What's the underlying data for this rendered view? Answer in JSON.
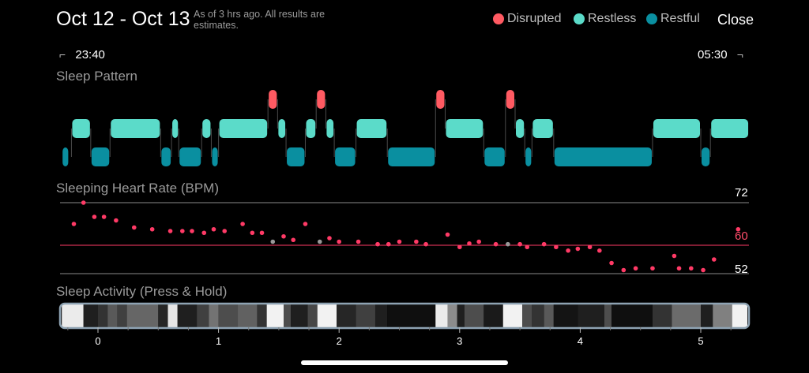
{
  "header": {
    "title": "Oct 12 - Oct 13",
    "note": "As of 3 hrs ago. All results are estimates.",
    "close_label": "Close"
  },
  "legend": [
    {
      "label": "Disrupted",
      "color": "#ff5a62"
    },
    {
      "label": "Restless",
      "color": "#5bdbc9"
    },
    {
      "label": "Restful",
      "color": "#0a8fa0"
    }
  ],
  "times": {
    "start": "23:40",
    "end": "05:30"
  },
  "sections": {
    "sleep_pattern": "Sleep Pattern",
    "heart_rate": "Sleeping Heart Rate (BPM)",
    "activity": "Sleep Activity (Press & Hold)"
  },
  "chart_data": [
    {
      "type": "timeline",
      "title": "Sleep Pattern",
      "x_unit": "hours",
      "xlim": [
        -0.32,
        5.4
      ],
      "stages": [
        "Disrupted",
        "Restless",
        "Restful"
      ],
      "segments": [
        {
          "stage": "Restful",
          "start": -0.3,
          "end": -0.24
        },
        {
          "stage": "Restless",
          "start": -0.22,
          "end": -0.06
        },
        {
          "stage": "Restful",
          "start": -0.06,
          "end": 0.1
        },
        {
          "stage": "Restless",
          "start": 0.1,
          "end": 0.52
        },
        {
          "stage": "Restful",
          "start": 0.52,
          "end": 0.61
        },
        {
          "stage": "Restless",
          "start": 0.61,
          "end": 0.67
        },
        {
          "stage": "Restful",
          "start": 0.67,
          "end": 0.86
        },
        {
          "stage": "Restless",
          "start": 0.86,
          "end": 0.94
        },
        {
          "stage": "Restful",
          "start": 0.94,
          "end": 1.0
        },
        {
          "stage": "Restless",
          "start": 1.0,
          "end": 1.41
        },
        {
          "stage": "Disrupted",
          "start": 1.41,
          "end": 1.49
        },
        {
          "stage": "Restless",
          "start": 1.49,
          "end": 1.56
        },
        {
          "stage": "Restful",
          "start": 1.56,
          "end": 1.72
        },
        {
          "stage": "Restless",
          "start": 1.72,
          "end": 1.81
        },
        {
          "stage": "Disrupted",
          "start": 1.81,
          "end": 1.89
        },
        {
          "stage": "Restless",
          "start": 1.89,
          "end": 1.96
        },
        {
          "stage": "Restful",
          "start": 1.96,
          "end": 2.14
        },
        {
          "stage": "Restless",
          "start": 2.14,
          "end": 2.4
        },
        {
          "stage": "Restful",
          "start": 2.4,
          "end": 2.8
        },
        {
          "stage": "Disrupted",
          "start": 2.8,
          "end": 2.88
        },
        {
          "stage": "Restless",
          "start": 2.88,
          "end": 3.2
        },
        {
          "stage": "Restful",
          "start": 3.2,
          "end": 3.38
        },
        {
          "stage": "Disrupted",
          "start": 3.38,
          "end": 3.46
        },
        {
          "stage": "Restless",
          "start": 3.46,
          "end": 3.54
        },
        {
          "stage": "Restful",
          "start": 3.54,
          "end": 3.6
        },
        {
          "stage": "Restless",
          "start": 3.6,
          "end": 3.78
        },
        {
          "stage": "Restful",
          "start": 3.78,
          "end": 4.6
        },
        {
          "stage": "Restless",
          "start": 4.6,
          "end": 5.0
        },
        {
          "stage": "Restful",
          "start": 5.0,
          "end": 5.08
        },
        {
          "stage": "Restless",
          "start": 5.08,
          "end": 5.4
        }
      ]
    },
    {
      "type": "scatter",
      "title": "Sleeping Heart Rate (BPM)",
      "x_unit": "hours",
      "xlim": [
        -0.32,
        5.4
      ],
      "ylim": [
        52,
        72
      ],
      "reference_lines": [
        72,
        60,
        52
      ],
      "highlight_line": 60,
      "points": [
        {
          "x": -0.2,
          "y": 66
        },
        {
          "x": -0.12,
          "y": 72
        },
        {
          "x": -0.03,
          "y": 68
        },
        {
          "x": 0.05,
          "y": 68
        },
        {
          "x": 0.15,
          "y": 67
        },
        {
          "x": 0.3,
          "y": 65
        },
        {
          "x": 0.45,
          "y": 64.5
        },
        {
          "x": 0.6,
          "y": 64
        },
        {
          "x": 0.7,
          "y": 64
        },
        {
          "x": 0.78,
          "y": 64
        },
        {
          "x": 0.88,
          "y": 63.5
        },
        {
          "x": 0.96,
          "y": 64.5
        },
        {
          "x": 1.05,
          "y": 64
        },
        {
          "x": 1.2,
          "y": 66
        },
        {
          "x": 1.28,
          "y": 63.5
        },
        {
          "x": 1.36,
          "y": 63.5
        },
        {
          "x": 1.45,
          "y": 61,
          "color": "#999999"
        },
        {
          "x": 1.54,
          "y": 62.5
        },
        {
          "x": 1.62,
          "y": 61.5
        },
        {
          "x": 1.72,
          "y": 66
        },
        {
          "x": 1.84,
          "y": 61,
          "color": "#999999"
        },
        {
          "x": 1.92,
          "y": 62
        },
        {
          "x": 2.0,
          "y": 61
        },
        {
          "x": 2.16,
          "y": 61
        },
        {
          "x": 2.32,
          "y": 60.3
        },
        {
          "x": 2.41,
          "y": 60.3
        },
        {
          "x": 2.5,
          "y": 61
        },
        {
          "x": 2.64,
          "y": 61
        },
        {
          "x": 2.72,
          "y": 60.3
        },
        {
          "x": 2.9,
          "y": 63
        },
        {
          "x": 3.0,
          "y": 59.5
        },
        {
          "x": 3.08,
          "y": 60.5
        },
        {
          "x": 3.16,
          "y": 61
        },
        {
          "x": 3.3,
          "y": 60.3
        },
        {
          "x": 3.4,
          "y": 60.3,
          "color": "#999999"
        },
        {
          "x": 3.5,
          "y": 60.3
        },
        {
          "x": 3.56,
          "y": 59.5
        },
        {
          "x": 3.7,
          "y": 60.3
        },
        {
          "x": 3.8,
          "y": 59.5
        },
        {
          "x": 3.9,
          "y": 58.5
        },
        {
          "x": 3.98,
          "y": 59
        },
        {
          "x": 4.08,
          "y": 59.5
        },
        {
          "x": 4.16,
          "y": 58.5
        },
        {
          "x": 4.26,
          "y": 55
        },
        {
          "x": 4.36,
          "y": 53
        },
        {
          "x": 4.46,
          "y": 53.5
        },
        {
          "x": 4.6,
          "y": 53.5
        },
        {
          "x": 4.78,
          "y": 57
        },
        {
          "x": 4.82,
          "y": 53.5
        },
        {
          "x": 4.92,
          "y": 53.5
        },
        {
          "x": 5.02,
          "y": 53
        },
        {
          "x": 5.11,
          "y": 56
        },
        {
          "x": 5.31,
          "y": 64.5
        }
      ]
    },
    {
      "type": "heatmap",
      "title": "Sleep Activity (Press & Hold)",
      "x_unit": "hours",
      "x_ticks": [
        0,
        1,
        2,
        3,
        4,
        5
      ],
      "xlim": [
        -0.32,
        5.4
      ],
      "cells": [
        {
          "start": -0.3,
          "end": -0.12,
          "level": 0.92
        },
        {
          "start": -0.12,
          "end": 0.0,
          "level": 0.12
        },
        {
          "start": 0.0,
          "end": 0.08,
          "level": 0.2
        },
        {
          "start": 0.08,
          "end": 0.16,
          "level": 0.35
        },
        {
          "start": 0.16,
          "end": 0.24,
          "level": 0.25
        },
        {
          "start": 0.24,
          "end": 0.5,
          "level": 0.4
        },
        {
          "start": 0.5,
          "end": 0.58,
          "level": 0.15
        },
        {
          "start": 0.58,
          "end": 0.66,
          "level": 0.9
        },
        {
          "start": 0.66,
          "end": 0.82,
          "level": 0.12
        },
        {
          "start": 0.82,
          "end": 0.92,
          "level": 0.25
        },
        {
          "start": 0.92,
          "end": 1.0,
          "level": 0.45
        },
        {
          "start": 1.0,
          "end": 1.16,
          "level": 0.3
        },
        {
          "start": 1.16,
          "end": 1.32,
          "level": 0.38
        },
        {
          "start": 1.32,
          "end": 1.4,
          "level": 0.2
        },
        {
          "start": 1.4,
          "end": 1.54,
          "level": 0.95
        },
        {
          "start": 1.54,
          "end": 1.6,
          "level": 0.3
        },
        {
          "start": 1.6,
          "end": 1.74,
          "level": 0.12
        },
        {
          "start": 1.74,
          "end": 1.82,
          "level": 0.28
        },
        {
          "start": 1.82,
          "end": 1.98,
          "level": 0.95
        },
        {
          "start": 1.98,
          "end": 2.14,
          "level": 0.15
        },
        {
          "start": 2.14,
          "end": 2.3,
          "level": 0.25
        },
        {
          "start": 2.3,
          "end": 2.4,
          "level": 0.12
        },
        {
          "start": 2.4,
          "end": 2.8,
          "level": 0.06
        },
        {
          "start": 2.8,
          "end": 2.9,
          "level": 0.92
        },
        {
          "start": 2.9,
          "end": 2.98,
          "level": 0.55
        },
        {
          "start": 2.98,
          "end": 3.04,
          "level": 0.12
        },
        {
          "start": 3.04,
          "end": 3.2,
          "level": 0.3
        },
        {
          "start": 3.2,
          "end": 3.36,
          "level": 0.1
        },
        {
          "start": 3.36,
          "end": 3.52,
          "level": 0.95
        },
        {
          "start": 3.52,
          "end": 3.6,
          "level": 0.3
        },
        {
          "start": 3.6,
          "end": 3.7,
          "level": 0.2
        },
        {
          "start": 3.7,
          "end": 3.78,
          "level": 0.35
        },
        {
          "start": 3.78,
          "end": 3.98,
          "level": 0.08
        },
        {
          "start": 3.98,
          "end": 4.2,
          "level": 0.12
        },
        {
          "start": 4.2,
          "end": 4.26,
          "level": 0.3
        },
        {
          "start": 4.26,
          "end": 4.6,
          "level": 0.06
        },
        {
          "start": 4.6,
          "end": 4.76,
          "level": 0.2
        },
        {
          "start": 4.76,
          "end": 5.0,
          "level": 0.42
        },
        {
          "start": 5.0,
          "end": 5.1,
          "level": 0.12
        },
        {
          "start": 5.1,
          "end": 5.26,
          "level": 0.5
        },
        {
          "start": 5.26,
          "end": 5.4,
          "level": 0.95
        }
      ]
    }
  ],
  "colors": {
    "disrupted": "#ff5a62",
    "restless": "#5bdbc9",
    "restful": "#0a8fa0",
    "hr_point": "#ff3a66",
    "hr_line_red": "#ff3a66",
    "grid": "#8a8a8a"
  },
  "bpm_labels": {
    "top": "72",
    "mid": "60",
    "bottom": "52"
  }
}
